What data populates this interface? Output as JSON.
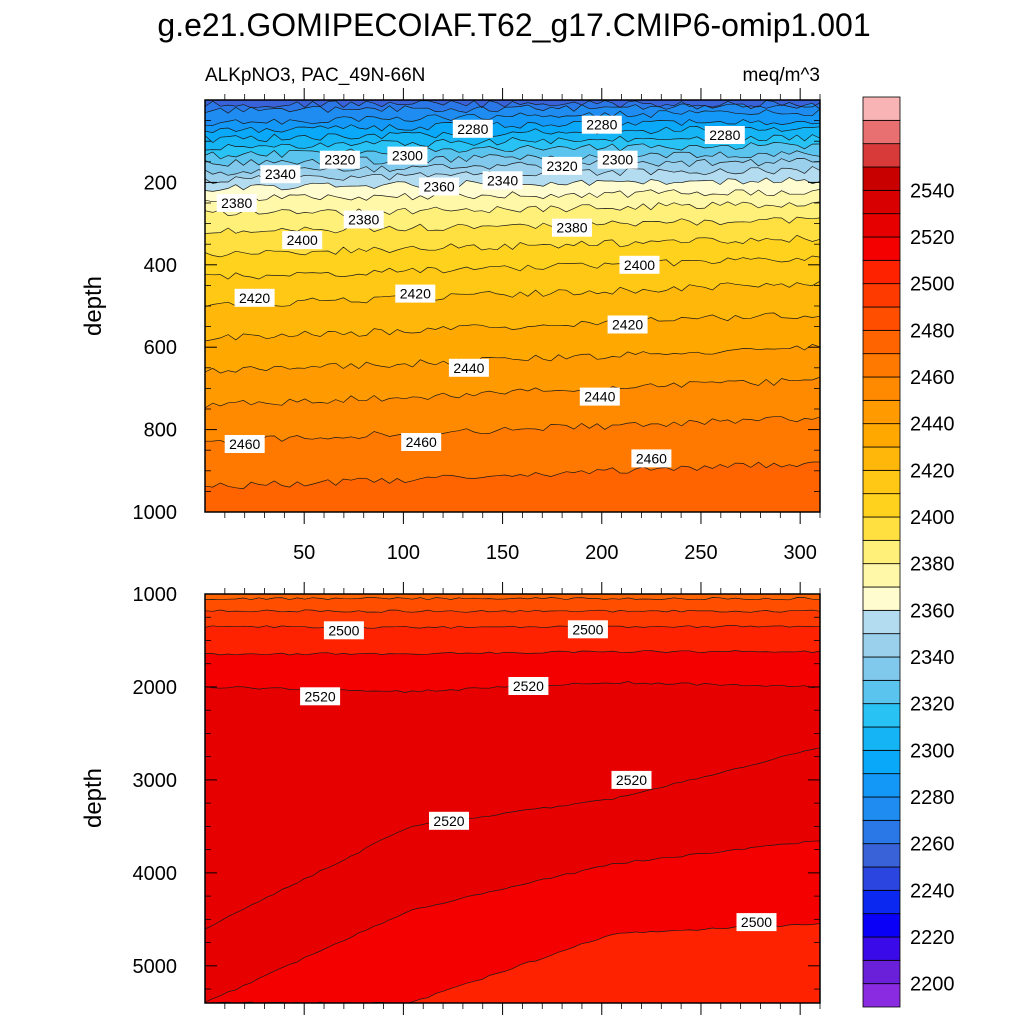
{
  "figure": {
    "title": "g.e21.GOMIPECOIAF.T62_g17.CMIP6-omip1.001",
    "variable_label": "ALKpNO3, PAC_49N-66N",
    "units_label": "meq/m^3"
  },
  "colorbar": {
    "levels": [
      2200,
      2210,
      2220,
      2230,
      2240,
      2250,
      2260,
      2270,
      2280,
      2290,
      2300,
      2310,
      2320,
      2330,
      2340,
      2350,
      2360,
      2370,
      2380,
      2390,
      2400,
      2410,
      2420,
      2430,
      2440,
      2450,
      2460,
      2470,
      2480,
      2490,
      2500,
      2510,
      2520,
      2530,
      2540,
      2550
    ],
    "colors": [
      "#8a2be2",
      "#6a1fd8",
      "#3a0ae8",
      "#0a00f8",
      "#0a28f0",
      "#2a45e0",
      "#3a62d8",
      "#2a78e8",
      "#1e8cf0",
      "#1498f8",
      "#0aa8f8",
      "#14b4f5",
      "#28c2f5",
      "#5ac4ee",
      "#80c8ec",
      "#9ad0ec",
      "#b4dcf0",
      "#fffdd0",
      "#fff8a8",
      "#fff07a",
      "#ffe040",
      "#ffd21e",
      "#ffc814",
      "#ffb80a",
      "#ffa800",
      "#ff9a00",
      "#ff8a00",
      "#ff7800",
      "#ff6400",
      "#ff4e00",
      "#ff3a00",
      "#ff2200",
      "#f40000",
      "#e60000",
      "#d80000",
      "#c80000",
      "#d83a3a",
      "#e87070",
      "#f8b4b4"
    ],
    "tick_labels": [
      "2200",
      "2220",
      "2240",
      "2260",
      "2280",
      "2300",
      "2320",
      "2340",
      "2360",
      "2380",
      "2400",
      "2420",
      "2440",
      "2460",
      "2480",
      "2500",
      "2520",
      "2540"
    ]
  },
  "chart_data": [
    {
      "type": "contour",
      "panel": "upper",
      "title": "ALKpNO3, PAC_49N-66N",
      "units": "meq/m^3",
      "xlabel": "",
      "ylabel": "depth",
      "xlim": [
        0,
        310
      ],
      "ylim": [
        1000,
        0
      ],
      "xticks": [
        50,
        100,
        150,
        200,
        250,
        300
      ],
      "yticks": [
        200,
        400,
        600,
        800,
        1000
      ],
      "contour_interval": 10,
      "contour_depths_by_level": {
        "2260": [
          10,
          10,
          10,
          10
        ],
        "2270": [
          25,
          22,
          20,
          15
        ],
        "2280": [
          55,
          45,
          35,
          30
        ],
        "2290": [
          75,
          65,
          55,
          50
        ],
        "2300": [
          95,
          85,
          75,
          70
        ],
        "2310": [
          115,
          105,
          95,
          90
        ],
        "2320": [
          135,
          125,
          115,
          110
        ],
        "2330": [
          155,
          145,
          135,
          130
        ],
        "2340": [
          175,
          165,
          155,
          150
        ],
        "2350": [
          195,
          185,
          175,
          170
        ],
        "2360": [
          215,
          205,
          200,
          195
        ],
        "2370": [
          240,
          235,
          228,
          222
        ],
        "2380": [
          275,
          270,
          260,
          250
        ],
        "2390": [
          320,
          310,
          300,
          290
        ],
        "2400": [
          375,
          360,
          348,
          335
        ],
        "2410": [
          430,
          415,
          400,
          385
        ],
        "2420": [
          500,
          480,
          462,
          445
        ],
        "2430": [
          580,
          560,
          540,
          520
        ],
        "2440": [
          660,
          640,
          620,
          600
        ],
        "2450": [
          740,
          720,
          700,
          680
        ],
        "2460": [
          830,
          810,
          790,
          770
        ],
        "2470": [
          940,
          920,
          900,
          880
        ]
      },
      "contour_labels": [
        {
          "text": "2280",
          "x": 135,
          "depth": 70
        },
        {
          "text": "2280",
          "x": 200,
          "depth": 60
        },
        {
          "text": "2280",
          "x": 262,
          "depth": 85
        },
        {
          "text": "2320",
          "x": 68,
          "depth": 145
        },
        {
          "text": "2300",
          "x": 102,
          "depth": 135
        },
        {
          "text": "2340",
          "x": 38,
          "depth": 180
        },
        {
          "text": "2320",
          "x": 180,
          "depth": 160
        },
        {
          "text": "2300",
          "x": 208,
          "depth": 145
        },
        {
          "text": "2340",
          "x": 150,
          "depth": 195
        },
        {
          "text": "2360",
          "x": 118,
          "depth": 210
        },
        {
          "text": "2380",
          "x": 16,
          "depth": 250
        },
        {
          "text": "2380",
          "x": 80,
          "depth": 290
        },
        {
          "text": "2380",
          "x": 185,
          "depth": 310
        },
        {
          "text": "2400",
          "x": 49,
          "depth": 340
        },
        {
          "text": "2400",
          "x": 219,
          "depth": 400
        },
        {
          "text": "2420",
          "x": 25,
          "depth": 480
        },
        {
          "text": "2420",
          "x": 106,
          "depth": 470
        },
        {
          "text": "2420",
          "x": 213,
          "depth": 545
        },
        {
          "text": "2440",
          "x": 133,
          "depth": 650
        },
        {
          "text": "2440",
          "x": 199,
          "depth": 720
        },
        {
          "text": "2460",
          "x": 20,
          "depth": 835
        },
        {
          "text": "2460",
          "x": 109,
          "depth": 830
        },
        {
          "text": "2460",
          "x": 225,
          "depth": 870
        }
      ]
    },
    {
      "type": "contour",
      "panel": "lower",
      "xlabel": "",
      "ylabel": "depth",
      "xlim": [
        0,
        310
      ],
      "ylim": [
        5400,
        1000
      ],
      "yticks": [
        1000,
        2000,
        3000,
        4000,
        5000
      ],
      "contour_interval": 10,
      "contour_depths_by_level": {
        "2480": [
          1050,
          1050,
          1050,
          1050
        ],
        "2490": [
          1180,
          1185,
          1185,
          1185
        ],
        "2500": [
          1350,
          1360,
          1355,
          1345
        ],
        "2510": [
          1650,
          1640,
          1620,
          1620
        ],
        "2520": [
          2000,
          2050,
          1950,
          2000
        ],
        "2530_deep_boundary": [
          4600,
          3500,
          3200,
          2650
        ],
        "2510_deep_boundary": [
          5400,
          4400,
          3900,
          3650
        ],
        "2500_deep_boundary": [
          5400,
          5400,
          4650,
          4550
        ]
      },
      "contour_labels": [
        {
          "text": "2500",
          "x": 70,
          "depth": 1390
        },
        {
          "text": "2500",
          "x": 193,
          "depth": 1380
        },
        {
          "text": "2520",
          "x": 58,
          "depth": 2100
        },
        {
          "text": "2520",
          "x": 163,
          "depth": 1990
        },
        {
          "text": "2520",
          "x": 215,
          "depth": 3000
        },
        {
          "text": "2520",
          "x": 123,
          "depth": 3440
        },
        {
          "text": "2500",
          "x": 278,
          "depth": 4530
        }
      ]
    }
  ]
}
